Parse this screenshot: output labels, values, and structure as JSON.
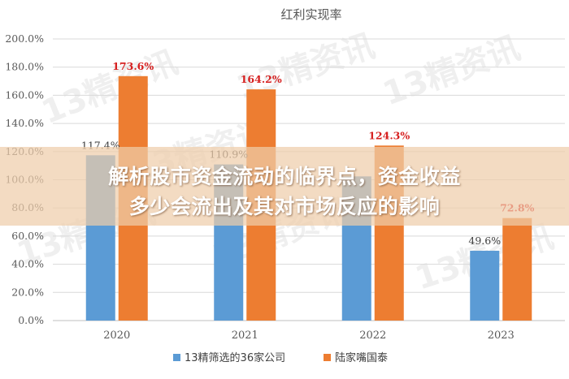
{
  "chart_data": {
    "type": "bar",
    "title": "红利实现率",
    "categories": [
      "2020",
      "2021",
      "2022",
      "2023"
    ],
    "series": [
      {
        "name": "13精筛选的36家公司",
        "values": [
          117.4,
          110.9,
          102.4,
          49.6
        ],
        "labels": [
          "117.4%",
          "110.9%",
          "",
          "49.6%"
        ],
        "color": "#5b9bd5"
      },
      {
        "name": "陆家嘴国泰",
        "values": [
          173.6,
          164.2,
          124.3,
          72.8
        ],
        "labels": [
          "173.6%",
          "164.2%",
          "124.3%",
          "72.8%"
        ],
        "color": "#ed7d31"
      }
    ],
    "ylim": [
      0,
      200
    ],
    "yticks": [
      "0.0%",
      "20.0%",
      "40.0%",
      "60.0%",
      "80.0%",
      "100.0%",
      "120.0%",
      "140.0%",
      "160.0%",
      "180.0%",
      "200.0%"
    ],
    "grid": true,
    "legend": "bottom",
    "label_colors": {
      "series_a": "#404040",
      "series_b": "#d61f1f"
    }
  },
  "overlay": {
    "line1": "解析股市资金流动的临界点，资金收益",
    "line2": "多少会流出及其对市场反应的影响"
  },
  "watermark": "13精资讯"
}
